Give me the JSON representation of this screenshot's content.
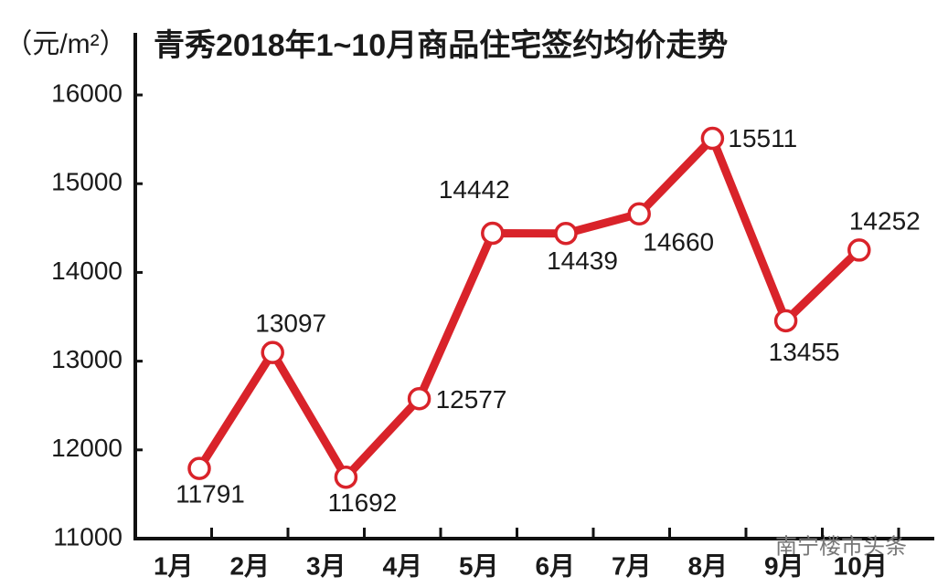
{
  "chart_data": {
    "type": "line",
    "title": "青秀2018年1~10月商品住宅签约均价走势",
    "y_label": "（元/m²）",
    "watermark": "南宁楼市头条",
    "categories": [
      "1月",
      "2月",
      "3月",
      "4月",
      "5月",
      "6月",
      "7月",
      "8月",
      "9月",
      "10月"
    ],
    "series": [
      {
        "name": "签约均价",
        "color": "#d9232a",
        "values": [
          11791,
          13097,
          11692,
          12577,
          14442,
          14439,
          14660,
          15511,
          13455,
          14252
        ]
      }
    ],
    "ylim": [
      11000,
      16700
    ],
    "yticks": [
      11000,
      12000,
      13000,
      14000,
      15000,
      16000
    ]
  }
}
